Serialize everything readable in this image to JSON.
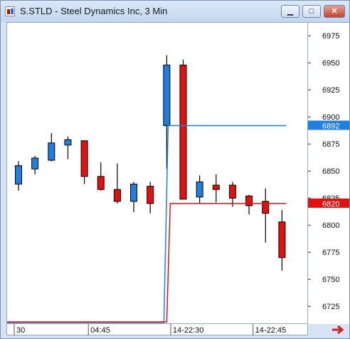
{
  "window": {
    "title": "S.STLD - Steel Dynamics Inc, 3 Min",
    "minimize_label": "▁",
    "maximize_label": "□",
    "close_label": "✕"
  },
  "colors": {
    "up": "#1f7fe0",
    "down": "#e31010",
    "bid_line": "#1f7fe0",
    "ask_line": "#e31010"
  },
  "chart_data": {
    "type": "candlestick",
    "ylim": [
      67.08,
      69.87
    ],
    "y_ticks": [
      67.25,
      67.5,
      67.75,
      68.0,
      68.25,
      68.5,
      68.75,
      69.0,
      69.25,
      69.5,
      69.75
    ],
    "y_tick_labels": [
      "6725",
      "6750",
      "6775",
      "6800",
      "6825",
      "6850",
      "6875",
      "6900",
      "6925",
      "6950",
      "6975"
    ],
    "x_tick_labels": [
      {
        "index": 0,
        "label": "30"
      },
      {
        "index": 4.5,
        "label": "04:45"
      },
      {
        "index": 9.5,
        "label": "14-22:30"
      },
      {
        "index": 14.5,
        "label": "14-22:45"
      }
    ],
    "candles": [
      {
        "o": 68.38,
        "h": 68.59,
        "l": 68.32,
        "c": 68.55
      },
      {
        "o": 68.52,
        "h": 68.64,
        "l": 68.47,
        "c": 68.62
      },
      {
        "o": 68.6,
        "h": 68.85,
        "l": 68.59,
        "c": 68.76
      },
      {
        "o": 68.74,
        "h": 68.82,
        "l": 68.61,
        "c": 68.79
      },
      {
        "o": 68.78,
        "h": 68.78,
        "l": 68.38,
        "c": 68.45
      },
      {
        "o": 68.45,
        "h": 68.58,
        "l": 68.32,
        "c": 68.33
      },
      {
        "o": 68.33,
        "h": 68.57,
        "l": 68.2,
        "c": 68.22
      },
      {
        "o": 68.22,
        "h": 68.4,
        "l": 68.12,
        "c": 68.38
      },
      {
        "o": 68.36,
        "h": 68.4,
        "l": 68.11,
        "c": 68.2
      },
      {
        "o": 68.92,
        "h": 69.57,
        "l": 68.52,
        "c": 69.48
      },
      {
        "o": 69.48,
        "h": 69.53,
        "l": 68.24,
        "c": 68.24
      },
      {
        "o": 68.26,
        "h": 68.46,
        "l": 68.2,
        "c": 68.4
      },
      {
        "o": 68.37,
        "h": 68.47,
        "l": 68.21,
        "c": 68.33
      },
      {
        "o": 68.37,
        "h": 68.4,
        "l": 68.17,
        "c": 68.25
      },
      {
        "o": 68.27,
        "h": 68.28,
        "l": 68.1,
        "c": 68.18
      },
      {
        "o": 68.22,
        "h": 68.34,
        "l": 67.84,
        "c": 68.11
      },
      {
        "o": 68.03,
        "h": 68.14,
        "l": 67.58,
        "c": 67.7
      }
    ],
    "bid_price": 68.92,
    "ask_price": 68.2,
    "bid_label": "6892",
    "ask_label": "6820",
    "bid_volume": [
      0,
      0,
      0,
      0,
      0,
      0,
      0,
      0,
      0,
      1,
      1,
      1,
      1,
      1,
      1,
      1,
      1
    ],
    "ask_volume": [
      0,
      0,
      0,
      0,
      0,
      0,
      0,
      0,
      0,
      1,
      1,
      1,
      1,
      1,
      1,
      1,
      1
    ]
  }
}
